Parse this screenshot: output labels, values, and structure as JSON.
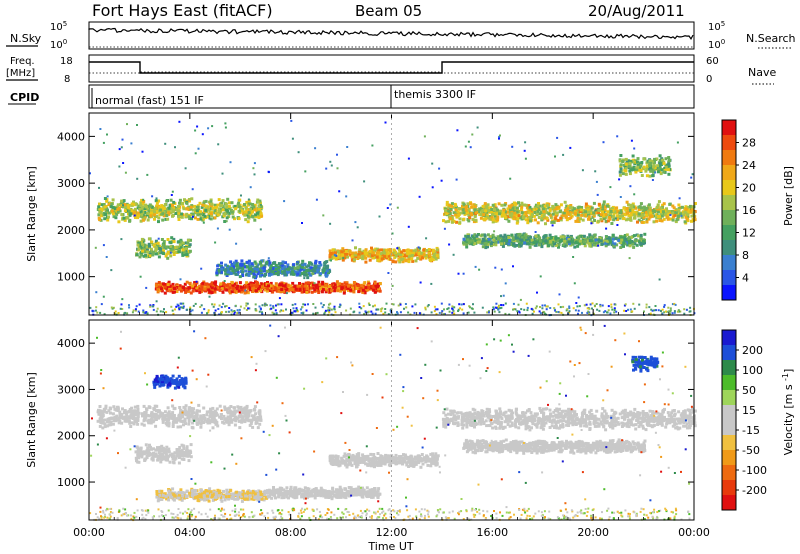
{
  "header": {
    "radar": "Fort Hays East (fitACF)",
    "beam": "Beam 05",
    "date": "20/Aug/2011"
  },
  "top_panels": {
    "nsky_label": "N.Sky",
    "nsearch_label": "N.Search",
    "nsky_ticks": [
      "10^5",
      "10^0"
    ],
    "nsearch_ticks": [
      "10^5",
      "10^0"
    ],
    "freq_label_1": "Freq.",
    "freq_label_2": "[MHz]",
    "freq_ticks": [
      "18",
      "8"
    ],
    "nave_label": "Nave",
    "nave_ticks": [
      "60",
      "0"
    ],
    "cpid_label": "CPID",
    "cpid_segments": [
      {
        "label": "normal (fast) 151 IF"
      },
      {
        "label": "themis 3300 IF"
      }
    ]
  },
  "chart_data": [
    {
      "type": "heatmap",
      "title": "",
      "xlabel": "",
      "ylabel": "Slant Range [km]",
      "x_ticks": [
        "00:00",
        "04:00",
        "08:00",
        "12:00",
        "16:00",
        "20:00",
        "00:00"
      ],
      "y_ticks": [
        "1000",
        "2000",
        "3000",
        "4000"
      ],
      "xlim": [
        0,
        24
      ],
      "ylim": [
        180,
        4500
      ],
      "colorbar": {
        "label": "Power [dB]",
        "ticks": [
          "4",
          "8",
          "12",
          "16",
          "20",
          "24",
          "28"
        ],
        "colors": [
          "#0a14ff",
          "#2a56e6",
          "#3a7fd0",
          "#3f8f7c",
          "#44a060",
          "#6fb05a",
          "#a8c34a",
          "#e8c81a",
          "#f0a818",
          "#f07a10",
          "#ee4a0e",
          "#e01010"
        ]
      },
      "bands": [
        {
          "t0": 0.3,
          "t1": 6.8,
          "r": 2450,
          "w": 260,
          "v": 16
        },
        {
          "t0": 1.8,
          "t1": 4.0,
          "r": 1650,
          "w": 230,
          "v": 14
        },
        {
          "t0": 2.6,
          "t1": 11.5,
          "r": 800,
          "w": 130,
          "v": 26
        },
        {
          "t0": 5.0,
          "t1": 9.5,
          "r": 1200,
          "w": 200,
          "v": 8
        },
        {
          "t0": 9.5,
          "t1": 13.8,
          "r": 1500,
          "w": 160,
          "v": 20
        },
        {
          "t0": 14.0,
          "t1": 24.0,
          "r": 2400,
          "w": 250,
          "v": 18
        },
        {
          "t0": 14.8,
          "t1": 22.0,
          "r": 1800,
          "w": 150,
          "v": 12
        },
        {
          "t0": 21.0,
          "t1": 23.0,
          "r": 3400,
          "w": 250,
          "v": 14
        }
      ]
    },
    {
      "type": "heatmap",
      "title": "",
      "xlabel": "Time UT",
      "ylabel": "Slant Range [km]",
      "x_ticks": [
        "00:00",
        "04:00",
        "08:00",
        "12:00",
        "16:00",
        "20:00",
        "00:00"
      ],
      "y_ticks": [
        "1000",
        "2000",
        "3000",
        "4000"
      ],
      "xlim": [
        0,
        24
      ],
      "ylim": [
        180,
        4500
      ],
      "colorbar": {
        "label": "Velocity [m s^-1]",
        "ticks": [
          "200",
          "100",
          "50",
          "15",
          "-15",
          "-50",
          "-100",
          "-200"
        ],
        "colors": [
          "#1a1ad0",
          "#1d4fd8",
          "#2d8a4a",
          "#4cbc2a",
          "#9ed55a",
          "#c8c8c8",
          "#c8c8c8",
          "#f0c040",
          "#f09a18",
          "#ee6a10",
          "#e83a0c",
          "#e01010"
        ]
      },
      "bands": [
        {
          "t0": 0.3,
          "t1": 6.8,
          "r": 2450,
          "w": 260,
          "v": 0
        },
        {
          "t0": 1.8,
          "t1": 4.0,
          "r": 1650,
          "w": 230,
          "v": 0
        },
        {
          "t0": 2.6,
          "t1": 7.0,
          "r": 750,
          "w": 140,
          "v": -40
        },
        {
          "t0": 7.0,
          "t1": 11.5,
          "r": 800,
          "w": 130,
          "v": 0
        },
        {
          "t0": 9.5,
          "t1": 13.8,
          "r": 1500,
          "w": 160,
          "v": 0
        },
        {
          "t0": 14.0,
          "t1": 24.0,
          "r": 2400,
          "w": 250,
          "v": 0
        },
        {
          "t0": 14.8,
          "t1": 22.0,
          "r": 1800,
          "w": 150,
          "v": 0
        },
        {
          "t0": 21.5,
          "t1": 22.5,
          "r": 3600,
          "w": 200,
          "v": 180
        },
        {
          "t0": 2.5,
          "t1": 3.8,
          "r": 3200,
          "w": 150,
          "v": 200
        }
      ]
    }
  ],
  "colors": {
    "black": "#000000",
    "white": "#ffffff"
  }
}
